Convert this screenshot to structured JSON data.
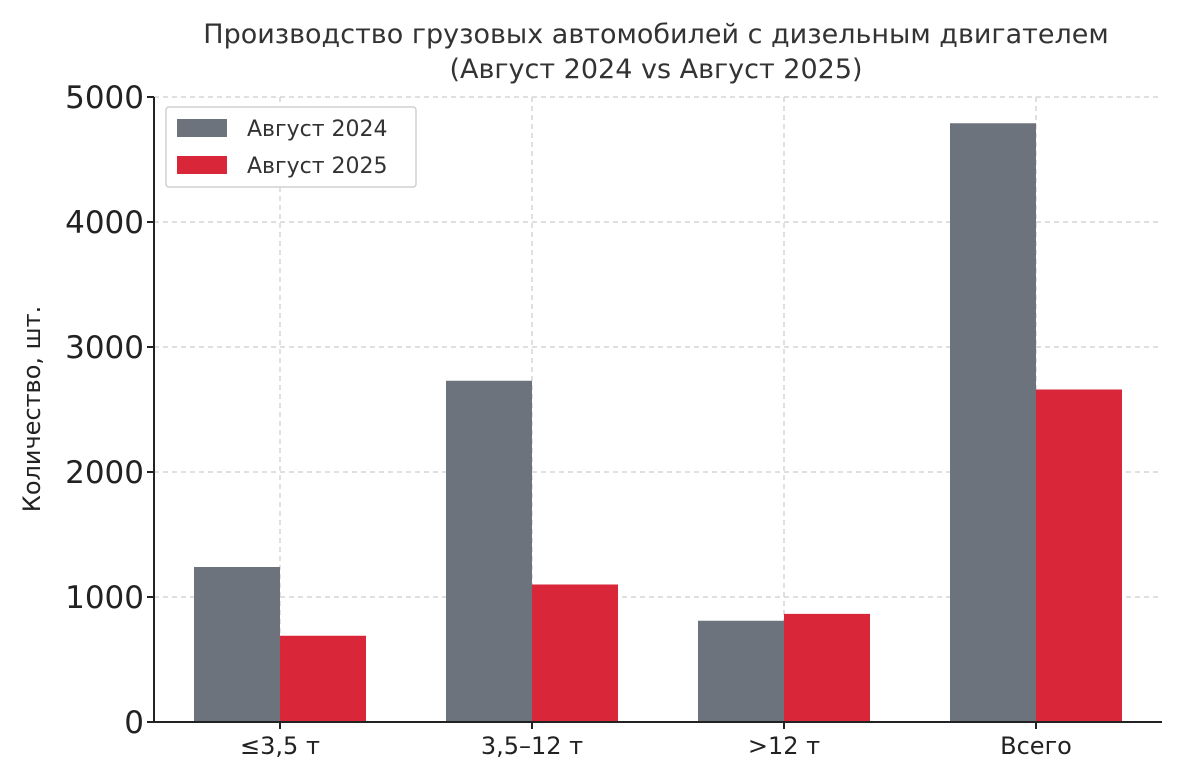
{
  "chart_data": {
    "type": "bar",
    "title": "Производство грузовых автомобилей с дизельным двигателем",
    "subtitle": "(Август 2024 vs Август 2025)",
    "xlabel": "",
    "ylabel": "Количество, шт.",
    "categories": [
      "≤3,5 т",
      "3,5–12 т",
      ">12 т",
      "Всего"
    ],
    "series": [
      {
        "name": "Август 2024",
        "color": "#6c737c",
        "values": [
          1240,
          2730,
          810,
          4790
        ]
      },
      {
        "name": "Август 2025",
        "color": "#d92638",
        "values": [
          690,
          1100,
          865,
          2660
        ]
      }
    ],
    "ylim": [
      0,
      5000
    ],
    "yticks": [
      "0",
      "1000",
      "2000",
      "3000",
      "4000",
      "5000"
    ],
    "grid": true,
    "legend_position": "top-left"
  }
}
